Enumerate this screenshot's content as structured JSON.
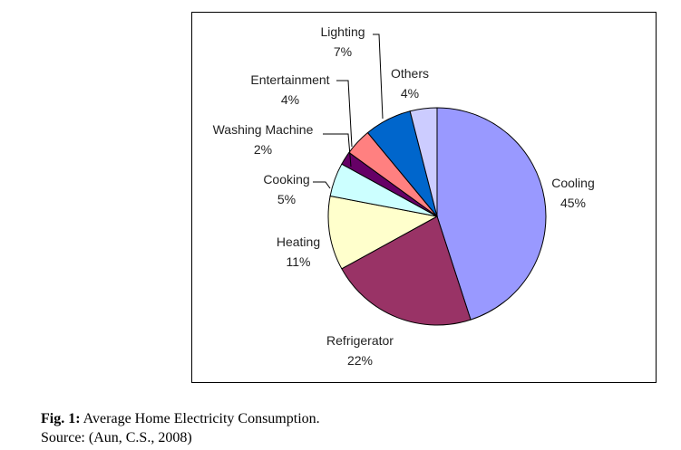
{
  "chart_data": {
    "type": "pie",
    "title": "",
    "slices": [
      {
        "label": "Cooling",
        "value": 45,
        "value_text": "45%",
        "color": "#9999ff"
      },
      {
        "label": "Refrigerator",
        "value": 22,
        "value_text": "22%",
        "color": "#993366"
      },
      {
        "label": "Heating",
        "value": 11,
        "value_text": "11%",
        "color": "#ffffcc"
      },
      {
        "label": "Cooking",
        "value": 5,
        "value_text": "5%",
        "color": "#ccffff"
      },
      {
        "label": "Washing Machine",
        "value": 2,
        "value_text": "2%",
        "color": "#660066"
      },
      {
        "label": "Entertainment",
        "value": 4,
        "value_text": "4%",
        "color": "#ff8080"
      },
      {
        "label": "Lighting",
        "value": 7,
        "value_text": "7%",
        "color": "#0066cc"
      },
      {
        "label": "Others",
        "value": 4,
        "value_text": "4%",
        "color": "#ccccff"
      }
    ],
    "legend": "none"
  },
  "caption": {
    "fig_label": "Fig. 1:",
    "title": " Average Home Electricity Consumption.",
    "source": "Source: (Aun, C.S., 2008)"
  }
}
